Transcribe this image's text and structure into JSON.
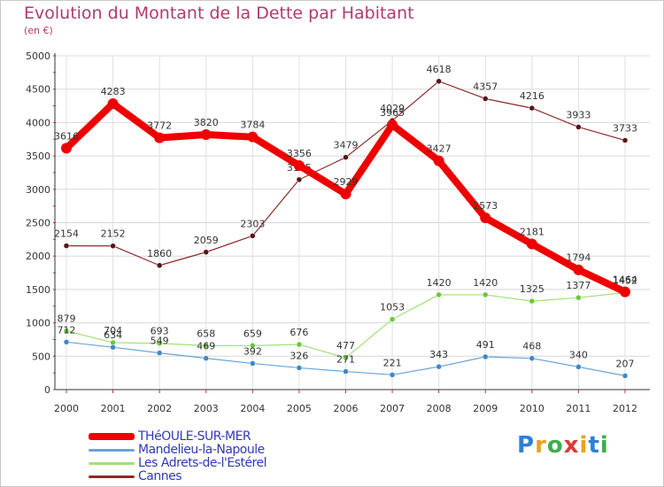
{
  "title": "Evolution du Montant de la Dette par Habitant",
  "subtitle": "(en €)",
  "logo": {
    "text": "Proxiti",
    "colors": [
      "#2e7fd6",
      "#e8a21c",
      "#3bb04a",
      "#d93a3a",
      "#e8a21c",
      "#2e7fd6",
      "#3bb04a"
    ]
  },
  "chart_data": {
    "type": "line",
    "title": "Evolution du Montant de la Dette par Habitant",
    "subtitle": "(en €)",
    "xlabel": "",
    "ylabel": "",
    "ylim": [
      0,
      5000
    ],
    "yticks": [
      0,
      500,
      1000,
      1500,
      2000,
      2500,
      3000,
      3500,
      4000,
      4500,
      5000
    ],
    "grid": true,
    "legend_position": "bottom-left",
    "x": [
      "2000",
      "2001",
      "2002",
      "2003",
      "2004",
      "2005",
      "2006",
      "2007",
      "2008",
      "2009",
      "2010",
      "2011",
      "2012"
    ],
    "series": [
      {
        "name": "Cannes",
        "color": "#8b2a2a",
        "dot": "#5a1414",
        "width": 1.2,
        "values": [
          2154,
          2152,
          1860,
          2059,
          2303,
          3145,
          3479,
          4029,
          4618,
          4357,
          4216,
          3933,
          3733
        ]
      },
      {
        "name": "Les Adrets-de-l'Estérel",
        "color": "#9fe07a",
        "dot": "#6cc83a",
        "width": 1.2,
        "values": [
          879,
          704,
          693,
          658,
          659,
          676,
          477,
          1053,
          1420,
          1420,
          1325,
          1377,
          1452
        ]
      },
      {
        "name": "Mandelieu-la-Napoule",
        "color": "#6aa4d6",
        "dot": "#3f88c8",
        "width": 1.2,
        "values": [
          712,
          634,
          549,
          469,
          392,
          326,
          271,
          221,
          343,
          491,
          468,
          340,
          207
        ]
      },
      {
        "name": "THéOULE-SUR-MER",
        "color": "#ee0000",
        "dot": "#ee0000",
        "width": 8,
        "values": [
          3616,
          4283,
          3772,
          3820,
          3784,
          3356,
          2929,
          3965,
          3427,
          2573,
          2181,
          1794,
          1464
        ]
      }
    ],
    "legend": [
      "THéOULE-SUR-MER",
      "Mandelieu-la-Napoule",
      "Les Adrets-de-l'Estérel",
      "Cannes"
    ]
  }
}
